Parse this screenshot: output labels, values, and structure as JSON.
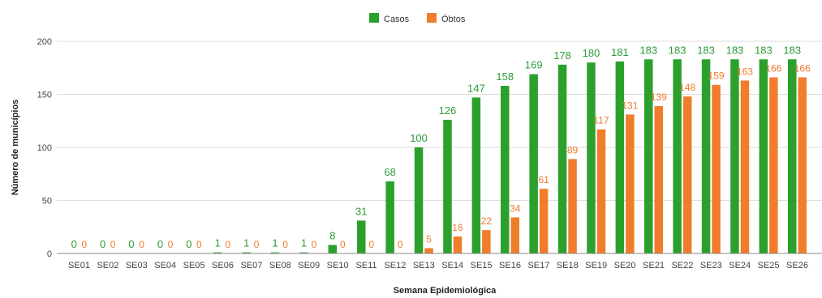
{
  "colors": {
    "cases": "#2ca02c",
    "deaths": "#f07d2c",
    "grid": "#dddddd",
    "axis": "#888888"
  },
  "chart_data": {
    "type": "bar",
    "xlabel": "Semana Epidemiológica",
    "ylabel": "Número de municípios",
    "ylim": [
      0,
      200
    ],
    "yticks": [
      0,
      50,
      100,
      150,
      200
    ],
    "grid": true,
    "legend_position": "top-center",
    "categories": [
      "SE01",
      "SE02",
      "SE03",
      "SE04",
      "SE05",
      "SE06",
      "SE07",
      "SE08",
      "SE09",
      "SE10",
      "SE11",
      "SE12",
      "SE13",
      "SE14",
      "SE15",
      "SE16",
      "SE17",
      "SE18",
      "SE19",
      "SE20",
      "SE21",
      "SE22",
      "SE23",
      "SE24",
      "SE25",
      "SE26"
    ],
    "series": [
      {
        "name": "Casos",
        "color": "#2ca02c",
        "values": [
          0,
          0,
          0,
          0,
          0,
          1,
          1,
          1,
          1,
          8,
          31,
          68,
          100,
          126,
          147,
          158,
          169,
          178,
          180,
          181,
          183,
          183,
          183,
          183,
          183,
          183
        ]
      },
      {
        "name": "Óbtos",
        "color": "#f07d2c",
        "values": [
          0,
          0,
          0,
          0,
          0,
          0,
          0,
          0,
          0,
          0,
          0,
          0,
          5,
          16,
          22,
          34,
          61,
          89,
          117,
          131,
          139,
          148,
          159,
          163,
          166,
          166
        ]
      }
    ]
  }
}
